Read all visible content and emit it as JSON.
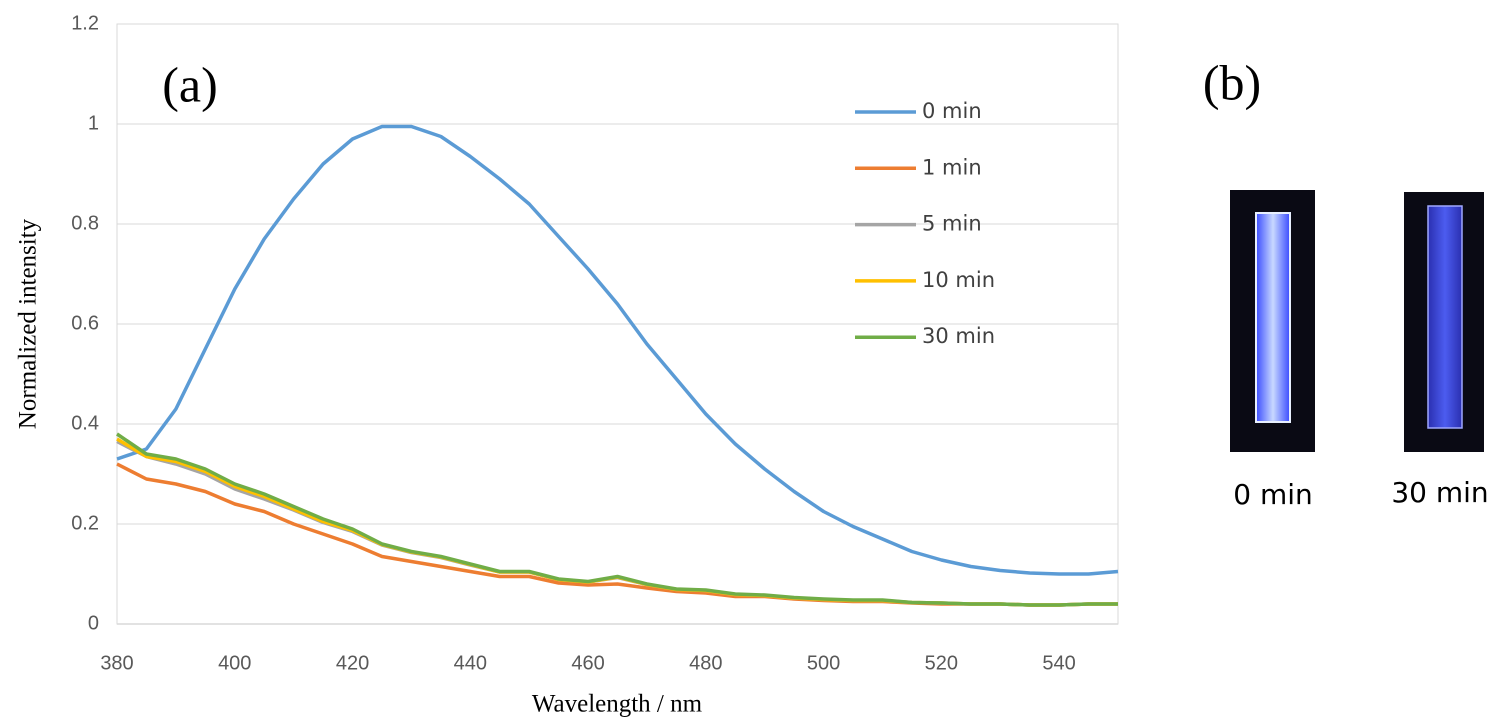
{
  "chart_data": {
    "type": "line",
    "panel_label": "(a)",
    "x_label": "Wavelength / nm",
    "y_label": "Normalized intensity",
    "x": [
      380,
      385,
      390,
      395,
      400,
      405,
      410,
      415,
      420,
      425,
      430,
      435,
      440,
      445,
      450,
      455,
      460,
      465,
      470,
      475,
      480,
      485,
      490,
      495,
      500,
      505,
      510,
      515,
      520,
      525,
      530,
      535,
      540,
      545,
      550
    ],
    "series": [
      {
        "name": "0 min",
        "color": "#5b9bd5",
        "values": [
          0.33,
          0.35,
          0.43,
          0.55,
          0.67,
          0.77,
          0.85,
          0.92,
          0.97,
          0.995,
          0.995,
          0.975,
          0.935,
          0.89,
          0.84,
          0.775,
          0.71,
          0.64,
          0.56,
          0.49,
          0.42,
          0.36,
          0.31,
          0.265,
          0.225,
          0.195,
          0.17,
          0.145,
          0.128,
          0.115,
          0.107,
          0.102,
          0.1,
          0.1,
          0.105
        ]
      },
      {
        "name": "1 min",
        "color": "#ed7d31",
        "values": [
          0.32,
          0.29,
          0.28,
          0.265,
          0.24,
          0.225,
          0.2,
          0.18,
          0.16,
          0.135,
          0.125,
          0.115,
          0.105,
          0.095,
          0.095,
          0.082,
          0.078,
          0.08,
          0.072,
          0.065,
          0.062,
          0.055,
          0.055,
          0.05,
          0.047,
          0.045,
          0.045,
          0.042,
          0.04,
          0.04,
          0.04,
          0.038,
          0.038,
          0.04,
          0.04
        ]
      },
      {
        "name": "5 min",
        "color": "#a5a5a5",
        "values": [
          0.365,
          0.335,
          0.32,
          0.3,
          0.27,
          0.25,
          0.228,
          0.203,
          0.185,
          0.158,
          0.143,
          0.133,
          0.118,
          0.104,
          0.104,
          0.089,
          0.084,
          0.093,
          0.079,
          0.069,
          0.067,
          0.059,
          0.057,
          0.052,
          0.049,
          0.047,
          0.047,
          0.043,
          0.042,
          0.04,
          0.04,
          0.038,
          0.038,
          0.04,
          0.04
        ]
      },
      {
        "name": "10 min",
        "color": "#ffc000",
        "values": [
          0.37,
          0.335,
          0.325,
          0.305,
          0.275,
          0.255,
          0.23,
          0.205,
          0.187,
          0.159,
          0.144,
          0.134,
          0.119,
          0.104,
          0.104,
          0.089,
          0.084,
          0.094,
          0.079,
          0.069,
          0.067,
          0.059,
          0.057,
          0.052,
          0.049,
          0.047,
          0.047,
          0.043,
          0.042,
          0.04,
          0.04,
          0.038,
          0.038,
          0.04,
          0.04
        ]
      },
      {
        "name": "30 min",
        "color": "#70ad47",
        "values": [
          0.38,
          0.34,
          0.33,
          0.31,
          0.28,
          0.26,
          0.235,
          0.21,
          0.19,
          0.16,
          0.145,
          0.135,
          0.12,
          0.105,
          0.105,
          0.09,
          0.085,
          0.095,
          0.08,
          0.07,
          0.068,
          0.06,
          0.058,
          0.053,
          0.05,
          0.048,
          0.048,
          0.043,
          0.042,
          0.04,
          0.04,
          0.038,
          0.038,
          0.04,
          0.04
        ]
      }
    ],
    "xlim": [
      380,
      550
    ],
    "xticks": [
      380,
      400,
      420,
      440,
      460,
      480,
      500,
      520,
      540
    ],
    "ylim": [
      0,
      1.2
    ],
    "yticks": [
      0,
      0.2,
      0.4,
      0.6,
      0.8,
      1,
      1.2
    ],
    "grid": true,
    "legend": "upper right"
  },
  "panel_b": {
    "label": "(b)",
    "photos": [
      "0 min",
      "30 min"
    ]
  }
}
